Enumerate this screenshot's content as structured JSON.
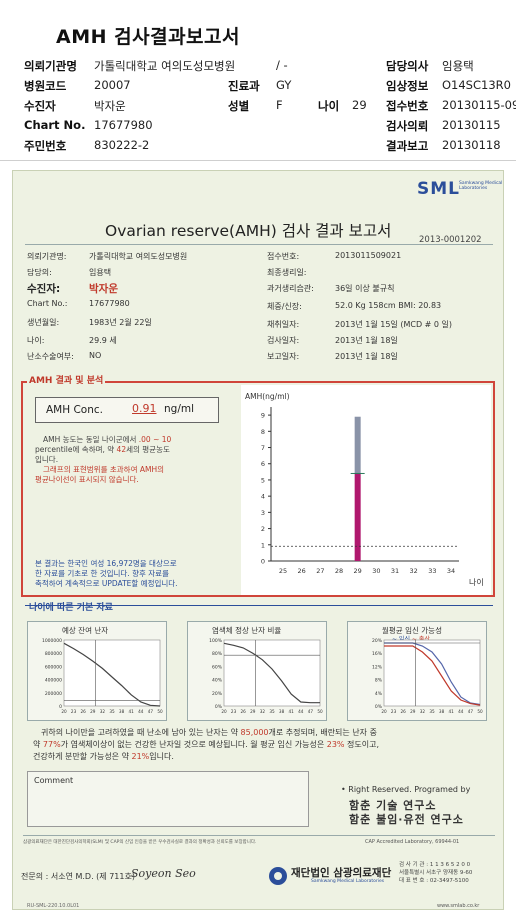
{
  "header": {
    "title": "AMH 검사결과보고서",
    "rows": [
      [
        {
          "k": "의뢰기관명",
          "v": "가톨릭대학교 여의도성모병원"
        },
        {
          "k": "",
          "v": "/ -"
        },
        {
          "k": "담당의사",
          "v": "임용택"
        }
      ],
      [
        {
          "k": "병원코드",
          "v": "20007"
        },
        {
          "k": "진료과",
          "v": "GY"
        },
        {
          "k": "임상정보",
          "v": "O14SC13R0"
        }
      ],
      [
        {
          "k": "수진자",
          "v": "박자운"
        },
        {
          "k": "성별",
          "v": "F"
        },
        {
          "k": "나이",
          "v": "29"
        },
        {
          "k": "접수번호",
          "v": "20130115-09"
        }
      ],
      [
        {
          "k": "Chart No.",
          "v": "17677980"
        },
        {
          "k": "검사의뢰",
          "v": "20130115"
        }
      ],
      [
        {
          "k": "주민번호",
          "v": "830222-2"
        },
        {
          "k": "결과보고",
          "v": "20130118"
        }
      ]
    ]
  },
  "paper": {
    "logo": "SML",
    "logo_sub": "Samkwang Medical Laboratories",
    "title": "Ovarian reserve(AMH) 검사 결과 보고서",
    "doc_no": "2013-0001202",
    "left_fields": [
      {
        "k": "의뢰기관명:",
        "v": "가톨릭대학교 여의도성모병원"
      },
      {
        "k": "담당의:",
        "v": "임용택"
      },
      {
        "k": "수진자:",
        "v": "박자운"
      },
      {
        "k": "Chart No.:",
        "v": "17677980"
      },
      {
        "k": "생년월일:",
        "v": "1983년 2월 22일"
      },
      {
        "k": "나이:",
        "v": "29.9 세"
      },
      {
        "k": "난소수술여부:",
        "v": "NO"
      }
    ],
    "right_fields": [
      {
        "k": "접수번호:",
        "v": "2013011509021"
      },
      {
        "k": "최종생리일:",
        "v": ""
      },
      {
        "k": "과거생리습관:",
        "v": "36일 이상 불규칙"
      },
      {
        "k": "체중/신장:",
        "v": "52.0 Kg    158cm    BMI:  20.83"
      },
      {
        "k": "채취일자:",
        "v": "2013년 1월 15일    (MCD #  0  일)"
      },
      {
        "k": "검사일자:",
        "v": "2013년 1월 18일"
      },
      {
        "k": "보고일자:",
        "v": "2013년 1월 18일"
      }
    ],
    "amh_section_title": "AMH 결과 및 분석",
    "conc_label": "AMH Conc.",
    "conc_value": "0.91",
    "conc_unit": "ng/ml",
    "note1_a": "AMH 농도는 동일 나이군에서 ",
    "note1_b": ".00 ~  10",
    "note2_a": "percentile에 속하며, 약 ",
    "note2_b": "42",
    "note2_c": "세의 평균농도",
    "note3": "입니다.",
    "note4": "그래프의 표현범위를 초과하여 AMH의",
    "note5": "평균나이선이 표시되지 않습니다.",
    "note6": "본 결과는 한국인 여성 16,972명을 대상으로",
    "note7": "한 자료를 기초로 한 것입니다. 향후 자료를",
    "note8": "축적하여 계속적으로 UPDATE할 예정입니다.",
    "age_section_title": "나이에 따른 기본 자료",
    "mini1_title": "예상 잔여 난자",
    "mini2_title": "염색체 정상 난자 비율",
    "mini3_title": "월평균 임신 가능성",
    "mini3_legend_a": "~ 임신",
    "mini3_legend_b": "~ 출산",
    "sum1_a": "귀하의 나이만을 고려하였을 때 난소에 남아 있는 난자는 약 ",
    "sum1_b": "85,000",
    "sum1_c": "개로 추정되며, 배란되는 난자 중",
    "sum2_a": "약 ",
    "sum2_b": "77%",
    "sum2_c": "가 염색체이상이 없는 건강한 난자일 것으로 예상됩니다. 월 평균 임신 가능성은 ",
    "sum2_d": "23%",
    "sum2_e": " 정도이고,",
    "sum3_a": "건강하게 분만할 가능성은 약 ",
    "sum3_b": "21%",
    "sum3_c": "입니다.",
    "comment_label": "Comment",
    "rights": "• Right Reserved. Programed by",
    "lab1": "함춘 기술 연구소",
    "lab2": "함춘 불임·유전 연구소",
    "cert": "삼광의료재단은 대한진단검사의학회(SLM) 및 CAP의 신임 인증을 받은 우수검사실로 결과의 정확성과 신뢰도를 보장합니다.",
    "cap": "CAP  Accredited  Laboratory,  69944-01",
    "specialist": "전문의 : 서소연 M.D. (제 711호)",
    "signature": "Soyeon Seo",
    "org": "재단법인 삼광의료재단",
    "org_en": "Samkwang Medical Laboratories",
    "contact1": "검 사 기 관 : 1 1 3 6 5 2 0 0",
    "contact2": "서울특별시 서초구 양재동 9-60",
    "contact3": "대 표 번 호 : 02-3497-5100",
    "url": "www.smlab.co.kr",
    "fmt": "RU-SML-220.10.0L01"
  },
  "amh_chart_data": {
    "type": "bar",
    "ylabel": "AMH(ng/ml)",
    "xlabel": "나이",
    "x_ticks": [
      25,
      26,
      27,
      28,
      29,
      30,
      31,
      32,
      33,
      34
    ],
    "y_ticks": [
      0,
      1,
      2,
      3,
      4,
      5,
      6,
      7,
      8,
      9
    ],
    "ylim": [
      0,
      9.5
    ],
    "bar_x": 29,
    "bar_high": 8.9,
    "bar_mid": 5.4,
    "patient_value": 0.91
  },
  "mini1_chart": {
    "type": "line",
    "y_ticks": [
      "1000000",
      "800000",
      "600000",
      "400000",
      "200000",
      "0"
    ],
    "x_ticks": [
      "20",
      "23",
      "26",
      "29",
      "32",
      "35",
      "38",
      "41",
      "44",
      "47",
      "50"
    ],
    "x": [
      20,
      23,
      26,
      29,
      32,
      35,
      38,
      41,
      44,
      47,
      50
    ],
    "y": [
      950000,
      870000,
      780000,
      680000,
      570000,
      440000,
      310000,
      170000,
      60000,
      10000,
      0
    ],
    "ylim": [
      0,
      1000000
    ],
    "xlim": [
      20,
      50
    ],
    "marker_x": 29.9,
    "marker_y": 85000
  },
  "mini2_chart": {
    "type": "line",
    "y_ticks": [
      "100%",
      "80%",
      "60%",
      "40%",
      "20%",
      "0%"
    ],
    "x_ticks": [
      "20",
      "23",
      "26",
      "29",
      "32",
      "35",
      "38",
      "41",
      "44",
      "47",
      "50"
    ],
    "x": [
      20,
      23,
      26,
      29,
      32,
      35,
      38,
      41,
      44,
      47,
      50
    ],
    "y": [
      95,
      92,
      88,
      80,
      70,
      56,
      38,
      18,
      6,
      5,
      5
    ],
    "ylim": [
      0,
      100
    ],
    "xlim": [
      20,
      50
    ],
    "marker_x": 29.9,
    "marker_y": 77
  },
  "mini3_chart": {
    "type": "line",
    "y_ticks": [
      "20%",
      "16%",
      "12%",
      "8%",
      "4%",
      "0%"
    ],
    "x_ticks": [
      "20",
      "23",
      "26",
      "29",
      "32",
      "35",
      "38",
      "41",
      "44",
      "47",
      "50"
    ],
    "x": [
      20,
      23,
      26,
      29,
      32,
      35,
      38,
      41,
      44,
      47,
      50
    ],
    "series": [
      {
        "y": [
          21,
          21,
          21,
          21,
          20,
          18,
          14,
          8,
          3,
          1,
          0.5
        ]
      },
      {
        "y": [
          20,
          20,
          20,
          20,
          18,
          15,
          10,
          5,
          2,
          0.8,
          0.3
        ]
      }
    ],
    "ylim": [
      0,
      22
    ],
    "xlim": [
      20,
      50
    ],
    "marker_x": 29.9,
    "marker_y": 21
  }
}
